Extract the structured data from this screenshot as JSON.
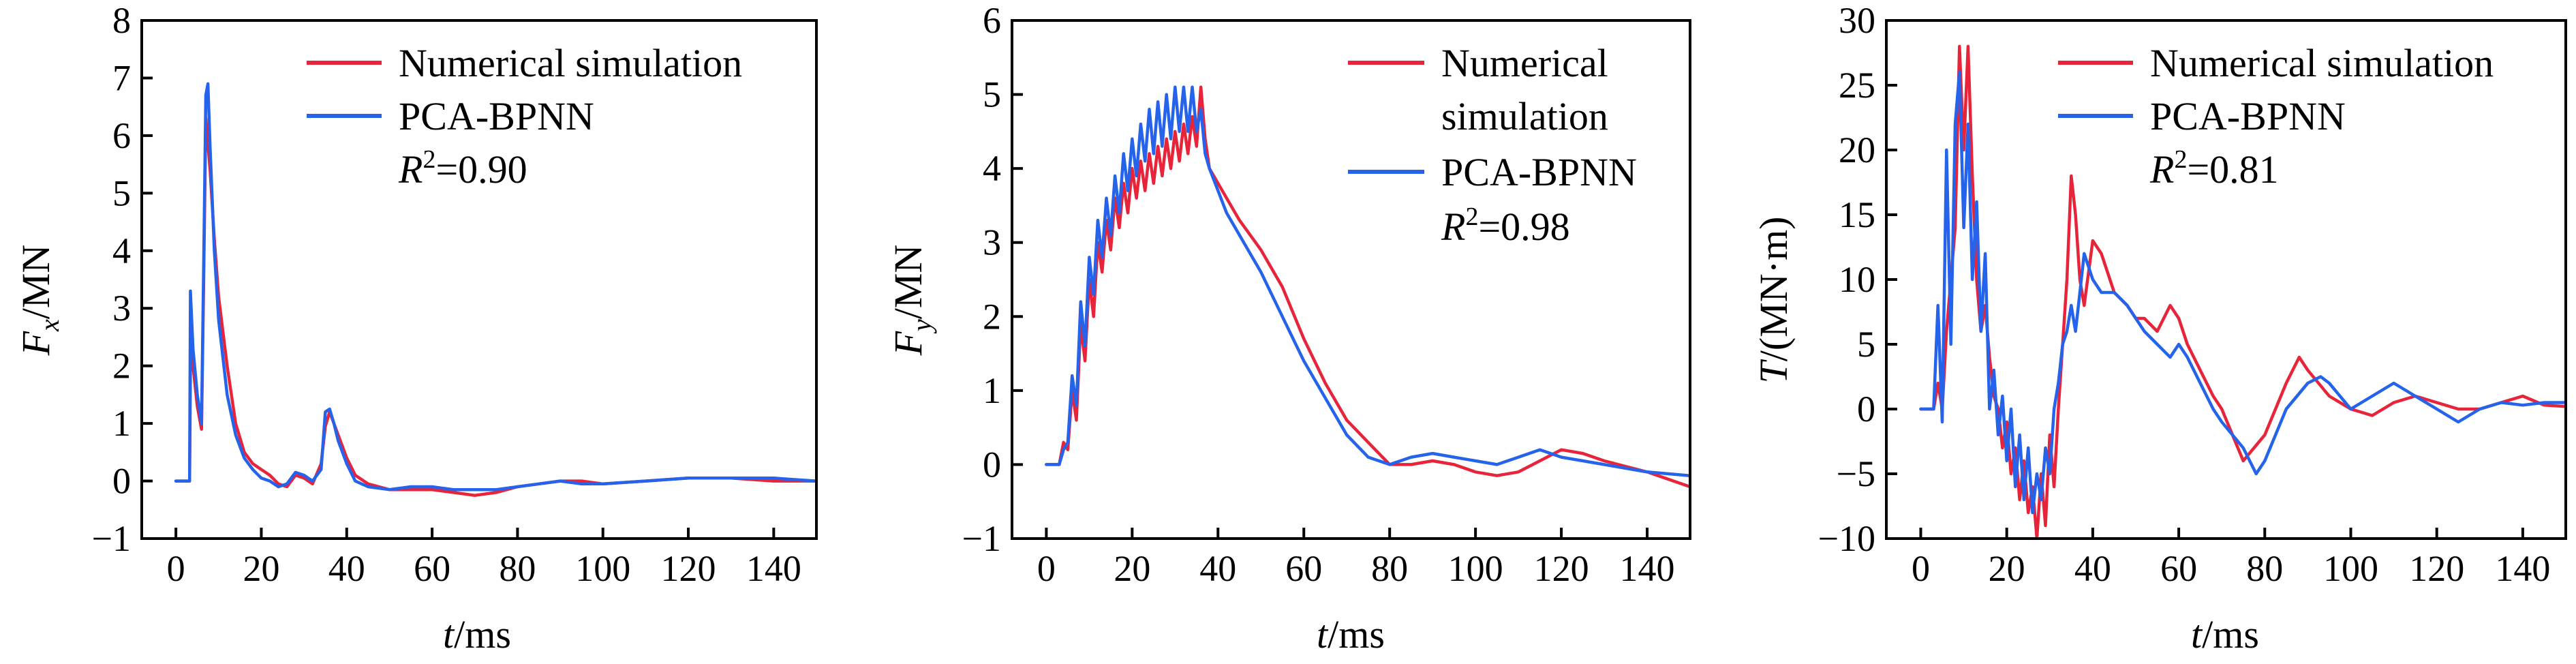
{
  "colors": {
    "numerical": "#e8243a",
    "pca": "#2563eb",
    "axis": "#000000"
  },
  "chart_data": [
    {
      "type": "line",
      "xlabel_italic": "t",
      "xlabel_unit": "/ms",
      "ylabel_italic": "F",
      "ylabel_sub": "x",
      "ylabel_unit": "/MN",
      "ylabel_plain": "",
      "xlim": [
        -8,
        150
      ],
      "ylim": [
        -1,
        8
      ],
      "xticks": [
        0,
        20,
        40,
        60,
        80,
        100,
        120,
        140
      ],
      "yticks": [
        -1,
        0,
        1,
        2,
        3,
        4,
        5,
        6,
        7,
        8
      ],
      "legend_position": "top-right",
      "r2_label": "R",
      "r2_value": "=0.90",
      "series": [
        {
          "name": "Numerical simulation",
          "color_key": "numerical",
          "x": [
            0,
            3.2,
            3.5,
            4,
            5,
            6,
            6.5,
            7,
            8,
            9,
            10,
            12,
            14,
            16,
            18,
            20,
            22,
            24,
            26,
            28,
            30,
            32,
            34,
            35,
            36,
            37,
            38,
            40,
            42,
            45,
            50,
            55,
            60,
            65,
            70,
            75,
            80,
            85,
            90,
            95,
            100,
            110,
            120,
            130,
            140,
            150
          ],
          "y": [
            0,
            0,
            3.0,
            2.0,
            1.3,
            0.9,
            3.5,
            6.3,
            5.4,
            4.2,
            3.2,
            2.0,
            1.0,
            0.5,
            0.3,
            0.2,
            0.1,
            -0.05,
            -0.1,
            0.1,
            0.05,
            -0.05,
            0.3,
            0.95,
            1.2,
            1.0,
            0.8,
            0.4,
            0.1,
            -0.05,
            -0.15,
            -0.15,
            -0.15,
            -0.2,
            -0.25,
            -0.2,
            -0.1,
            -0.05,
            0.0,
            0.0,
            -0.05,
            0.0,
            0.05,
            0.05,
            0.0,
            0.0
          ]
        },
        {
          "name": "PCA-BPNN",
          "color_key": "pca",
          "x": [
            0,
            3.2,
            3.4,
            4,
            5,
            6,
            6.5,
            7,
            7.5,
            8,
            9,
            10,
            12,
            14,
            16,
            18,
            20,
            22,
            24,
            26,
            28,
            30,
            32,
            34,
            35,
            36,
            37,
            38,
            40,
            42,
            45,
            50,
            55,
            60,
            65,
            70,
            75,
            80,
            85,
            90,
            95,
            100,
            110,
            120,
            130,
            140,
            150
          ],
          "y": [
            0,
            0,
            3.3,
            2.3,
            1.5,
            1.0,
            3.8,
            6.7,
            6.9,
            5.8,
            4.0,
            2.8,
            1.5,
            0.8,
            0.4,
            0.2,
            0.05,
            0.0,
            -0.1,
            -0.05,
            0.15,
            0.1,
            0.0,
            0.2,
            1.2,
            1.25,
            1.0,
            0.7,
            0.3,
            0.0,
            -0.1,
            -0.15,
            -0.1,
            -0.1,
            -0.15,
            -0.15,
            -0.15,
            -0.1,
            -0.05,
            0.0,
            -0.05,
            -0.05,
            0.0,
            0.05,
            0.05,
            0.05,
            0.0
          ]
        }
      ]
    },
    {
      "type": "line",
      "xlabel_italic": "t",
      "xlabel_unit": "/ms",
      "ylabel_italic": "F",
      "ylabel_sub": "y",
      "ylabel_unit": "/MN",
      "ylabel_plain": "",
      "xlim": [
        -8,
        150
      ],
      "ylim": [
        -1,
        6
      ],
      "xticks": [
        0,
        20,
        40,
        60,
        80,
        100,
        120,
        140
      ],
      "yticks": [
        -1,
        0,
        1,
        2,
        3,
        4,
        5,
        6
      ],
      "legend_position": "top-right",
      "r2_label": "R",
      "r2_value": "=0.98",
      "series": [
        {
          "name": "Numerical simulation",
          "color_key": "numerical",
          "x": [
            0,
            3,
            4,
            5,
            6,
            7,
            8,
            9,
            10,
            11,
            12,
            13,
            14,
            15,
            16,
            17,
            18,
            19,
            20,
            21,
            22,
            23,
            24,
            25,
            26,
            27,
            28,
            29,
            30,
            31,
            32,
            33,
            34,
            35,
            36,
            37,
            38,
            40,
            42,
            45,
            50,
            55,
            60,
            65,
            70,
            75,
            80,
            85,
            90,
            95,
            100,
            105,
            110,
            115,
            120,
            125,
            130,
            140,
            150
          ],
          "y": [
            0,
            0,
            0.3,
            0.2,
            1.0,
            0.6,
            1.9,
            1.4,
            2.5,
            2.0,
            3.0,
            2.6,
            3.3,
            2.9,
            3.6,
            3.2,
            3.8,
            3.4,
            4.0,
            3.6,
            4.1,
            3.7,
            4.2,
            3.8,
            4.3,
            3.9,
            4.4,
            4.0,
            4.5,
            4.1,
            4.6,
            4.2,
            4.7,
            4.3,
            5.1,
            4.4,
            4.0,
            3.8,
            3.6,
            3.3,
            2.9,
            2.4,
            1.7,
            1.1,
            0.6,
            0.3,
            0.0,
            0.0,
            0.05,
            0.0,
            -0.1,
            -0.15,
            -0.1,
            0.05,
            0.2,
            0.15,
            0.05,
            -0.1,
            -0.3
          ]
        },
        {
          "name": "PCA-BPNN",
          "color_key": "pca",
          "x": [
            0,
            3,
            4,
            5,
            6,
            7,
            8,
            9,
            10,
            11,
            12,
            13,
            14,
            15,
            16,
            17,
            18,
            19,
            20,
            21,
            22,
            23,
            24,
            25,
            26,
            27,
            28,
            29,
            30,
            31,
            32,
            33,
            34,
            35,
            36,
            37,
            38,
            40,
            42,
            45,
            50,
            55,
            60,
            65,
            70,
            75,
            80,
            85,
            90,
            95,
            100,
            105,
            110,
            115,
            120,
            125,
            130,
            140,
            150
          ],
          "y": [
            0,
            0,
            0.2,
            0.3,
            1.2,
            0.8,
            2.2,
            1.6,
            2.8,
            2.3,
            3.3,
            2.8,
            3.6,
            3.1,
            3.9,
            3.4,
            4.2,
            3.7,
            4.4,
            3.9,
            4.6,
            4.1,
            4.8,
            4.2,
            4.9,
            4.3,
            5.0,
            4.4,
            5.1,
            4.5,
            5.1,
            4.5,
            5.1,
            4.5,
            4.8,
            4.2,
            4.0,
            3.7,
            3.4,
            3.1,
            2.6,
            2.0,
            1.4,
            0.9,
            0.4,
            0.1,
            0.0,
            0.1,
            0.15,
            0.1,
            0.05,
            0.0,
            0.1,
            0.2,
            0.1,
            0.05,
            0.0,
            -0.1,
            -0.15
          ]
        }
      ]
    },
    {
      "type": "line",
      "xlabel_italic": "t",
      "xlabel_unit": "/ms",
      "ylabel_italic": "T",
      "ylabel_sub": "",
      "ylabel_unit": "/(MN·m)",
      "ylabel_plain": "",
      "xlim": [
        -8,
        150
      ],
      "ylim": [
        -10,
        30
      ],
      "xticks": [
        0,
        20,
        40,
        60,
        80,
        100,
        120,
        140
      ],
      "yticks": [
        -10,
        -5,
        0,
        5,
        10,
        15,
        20,
        25,
        30
      ],
      "legend_position": "top-right",
      "r2_label": "R",
      "r2_value": "=0.81",
      "series": [
        {
          "name": "Numerical simulation",
          "color_key": "numerical",
          "x": [
            0,
            3,
            4,
            5,
            6,
            7,
            8,
            9,
            10,
            11,
            12,
            13,
            14,
            15,
            16,
            17,
            18,
            19,
            20,
            21,
            22,
            23,
            24,
            25,
            26,
            27,
            28,
            29,
            30,
            31,
            32,
            33,
            34,
            35,
            36,
            37,
            38,
            40,
            42,
            45,
            48,
            50,
            52,
            55,
            58,
            60,
            62,
            65,
            68,
            70,
            75,
            80,
            85,
            88,
            90,
            95,
            100,
            105,
            110,
            115,
            120,
            125,
            130,
            135,
            140,
            145,
            150
          ],
          "y": [
            0,
            0,
            2,
            0,
            6,
            10,
            14,
            28,
            20,
            28,
            18,
            10,
            6,
            8,
            4,
            1,
            0,
            -3,
            -1,
            -5,
            -3,
            -7,
            -4,
            -8,
            -6,
            -10,
            -5,
            -9,
            -2,
            -6,
            0,
            5,
            10,
            18,
            15,
            10,
            8,
            13,
            12,
            9,
            8,
            7,
            7,
            6,
            8,
            7,
            5,
            3,
            1,
            0,
            -4,
            -2,
            2,
            4,
            3,
            1,
            0,
            -0.5,
            0.5,
            1,
            0.5,
            0,
            0,
            0.5,
            1,
            0.3,
            0.2
          ]
        },
        {
          "name": "PCA-BPNN",
          "color_key": "pca",
          "x": [
            0,
            3,
            4,
            5,
            6,
            7,
            8,
            9,
            10,
            11,
            12,
            13,
            14,
            15,
            16,
            17,
            18,
            19,
            20,
            21,
            22,
            23,
            24,
            25,
            26,
            27,
            28,
            29,
            30,
            31,
            32,
            33,
            34,
            35,
            36,
            37,
            38,
            40,
            42,
            45,
            48,
            50,
            52,
            55,
            58,
            60,
            62,
            65,
            68,
            70,
            75,
            78,
            80,
            85,
            90,
            93,
            95,
            100,
            105,
            110,
            115,
            120,
            125,
            130,
            135,
            140,
            145,
            150
          ],
          "y": [
            0,
            0,
            8,
            -1,
            20,
            5,
            22,
            26,
            14,
            22,
            10,
            16,
            6,
            12,
            0,
            3,
            -2,
            1,
            -4,
            0,
            -6,
            -2,
            -7,
            -3,
            -8,
            -5,
            -7,
            -3,
            -5,
            0,
            2,
            5,
            6,
            8,
            6,
            9,
            12,
            10,
            9,
            9,
            8,
            7,
            6,
            5,
            4,
            5,
            4,
            2,
            0,
            -1,
            -3,
            -5,
            -4,
            0,
            2,
            2.5,
            2,
            0,
            1,
            2,
            1,
            0,
            -1,
            0,
            0.5,
            0.3,
            0.5,
            0.5
          ]
        }
      ]
    }
  ]
}
